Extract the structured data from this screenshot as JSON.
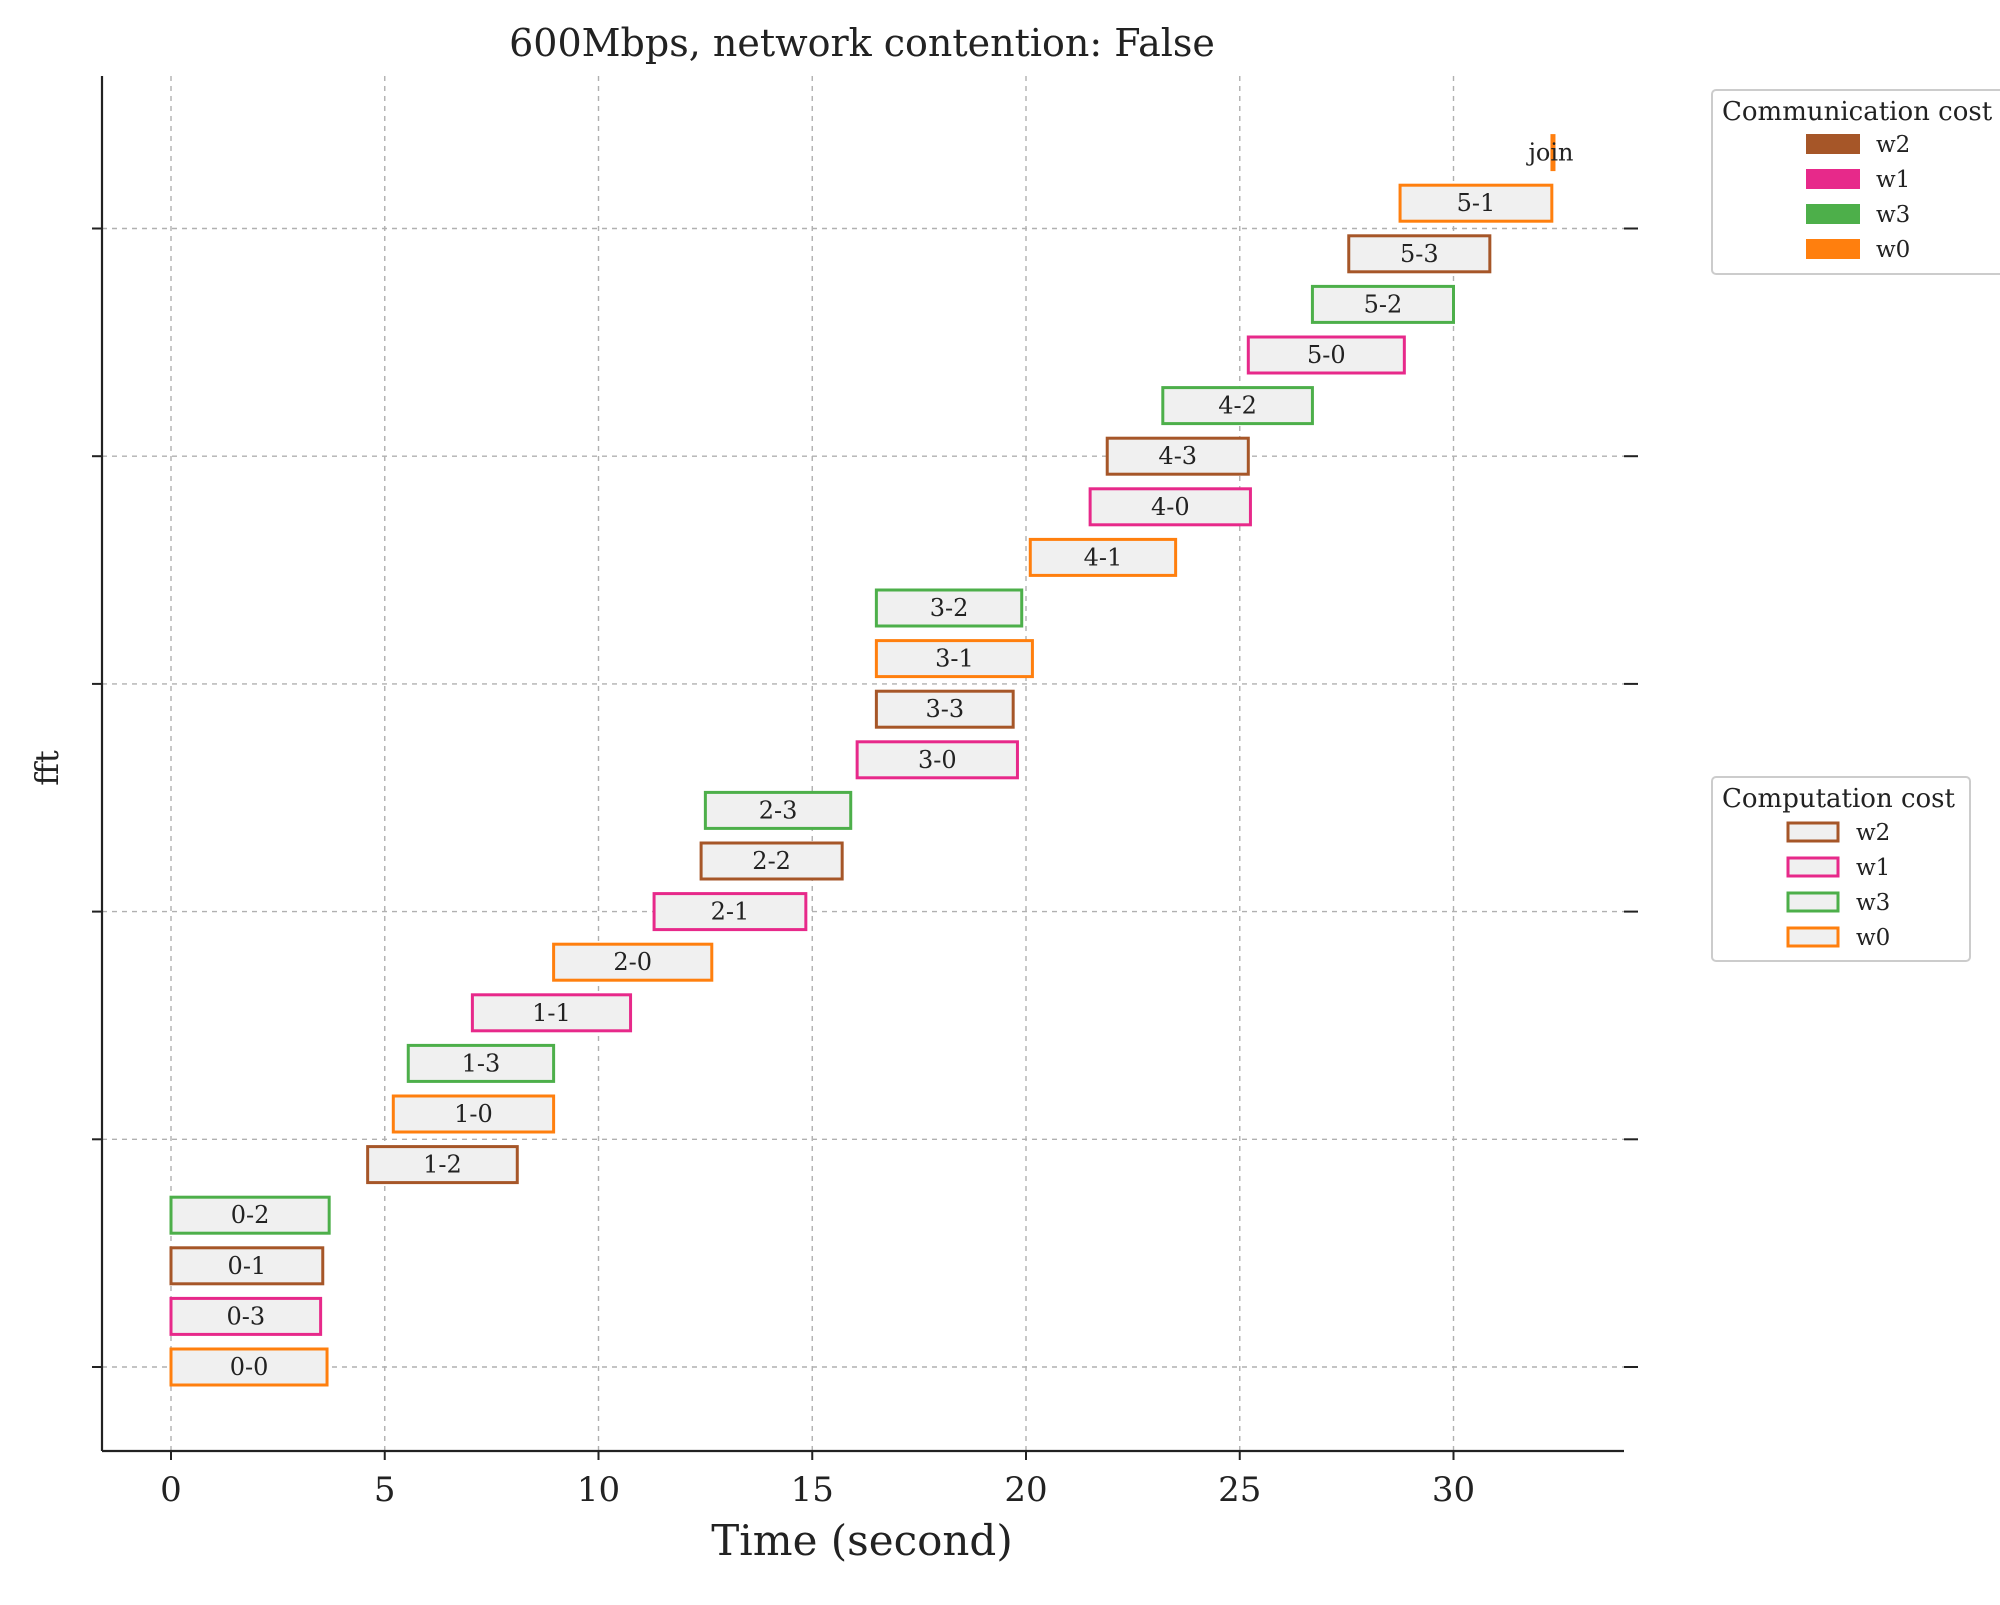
{
  "chart_data": {
    "type": "gantt",
    "title": "600Mbps, network contention: False",
    "xlabel": "Time (second)",
    "ylabel": "fft",
    "xlim": [
      -1.6,
      34
    ],
    "xticks": [
      0,
      5,
      10,
      15,
      20,
      25,
      30
    ],
    "xtick_labels": [
      "0",
      "5",
      "10",
      "15",
      "20",
      "25",
      "30"
    ],
    "grid": true,
    "workers": {
      "w0": "#ff7f0e",
      "w1": "#e7298a",
      "w2": "#a65628",
      "w3": "#4daf4a"
    },
    "tasks": [
      {
        "label": "0-0",
        "worker": "w0",
        "start": 0.0,
        "end": 3.65
      },
      {
        "label": "0-3",
        "worker": "w1",
        "start": 0.0,
        "end": 3.5
      },
      {
        "label": "0-1",
        "worker": "w2",
        "start": 0.0,
        "end": 3.55
      },
      {
        "label": "0-2",
        "worker": "w3",
        "start": 0.0,
        "end": 3.7
      },
      {
        "label": "1-2",
        "worker": "w2",
        "start": 4.6,
        "end": 8.1
      },
      {
        "label": "1-0",
        "worker": "w0",
        "start": 5.2,
        "end": 8.95
      },
      {
        "label": "1-3",
        "worker": "w3",
        "start": 5.55,
        "end": 8.95
      },
      {
        "label": "1-1",
        "worker": "w1",
        "start": 7.05,
        "end": 10.75
      },
      {
        "label": "2-0",
        "worker": "w0",
        "start": 8.95,
        "end": 12.65
      },
      {
        "label": "2-1",
        "worker": "w1",
        "start": 11.3,
        "end": 14.85
      },
      {
        "label": "2-2",
        "worker": "w2",
        "start": 12.4,
        "end": 15.7
      },
      {
        "label": "2-3",
        "worker": "w3",
        "start": 12.5,
        "end": 15.9
      },
      {
        "label": "3-0",
        "worker": "w1",
        "start": 16.05,
        "end": 19.8
      },
      {
        "label": "3-3",
        "worker": "w2",
        "start": 16.5,
        "end": 19.7
      },
      {
        "label": "3-1",
        "worker": "w0",
        "start": 16.5,
        "end": 20.15
      },
      {
        "label": "3-2",
        "worker": "w3",
        "start": 16.5,
        "end": 19.9
      },
      {
        "label": "4-1",
        "worker": "w0",
        "start": 20.1,
        "end": 23.5
      },
      {
        "label": "4-0",
        "worker": "w1",
        "start": 21.5,
        "end": 25.25
      },
      {
        "label": "4-3",
        "worker": "w2",
        "start": 21.9,
        "end": 25.2
      },
      {
        "label": "4-2",
        "worker": "w3",
        "start": 23.2,
        "end": 26.7
      },
      {
        "label": "5-0",
        "worker": "w1",
        "start": 25.2,
        "end": 28.85
      },
      {
        "label": "5-2",
        "worker": "w3",
        "start": 26.7,
        "end": 30.0
      },
      {
        "label": "5-3",
        "worker": "w2",
        "start": 27.55,
        "end": 30.85
      },
      {
        "label": "5-1",
        "worker": "w0",
        "start": 28.75,
        "end": 32.3
      }
    ],
    "join": {
      "label": "join",
      "worker": "w0",
      "start": 32.28,
      "end": 32.36
    },
    "legends": [
      {
        "title": "Communication cost",
        "style": "filled",
        "placement": "upper-right",
        "entries": [
          "w2",
          "w1",
          "w3",
          "w0"
        ]
      },
      {
        "title": "Computation cost",
        "style": "outline",
        "placement": "center-right",
        "entries": [
          "w2",
          "w1",
          "w3",
          "w0"
        ]
      }
    ]
  }
}
